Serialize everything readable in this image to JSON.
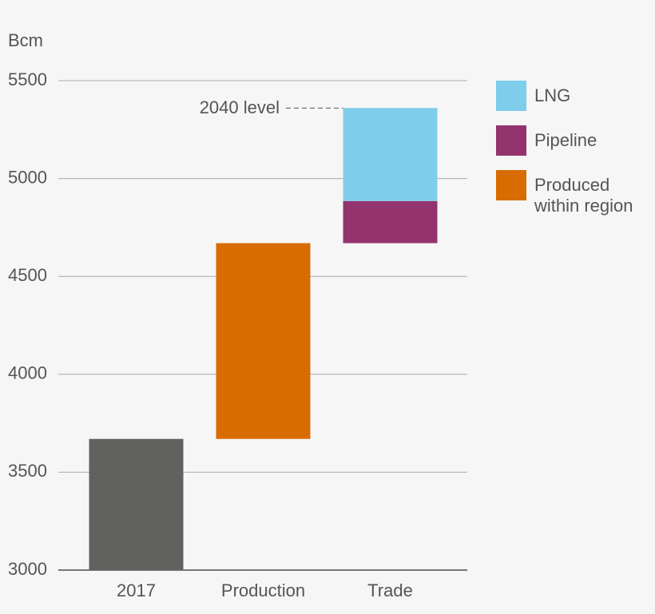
{
  "chart_data": {
    "type": "waterfall",
    "y_label": "Bcm",
    "categories": [
      "2017",
      "Production",
      "Trade"
    ],
    "base": {
      "value": 3670,
      "color": "#61615f"
    },
    "series": [
      {
        "name": "Produced within region",
        "color": "#d86c00",
        "values": [
          null,
          1000,
          null
        ]
      },
      {
        "name": "Pipeline",
        "color": "#93346e",
        "values": [
          null,
          null,
          215
        ]
      },
      {
        "name": "LNG",
        "color": "#7ecdeb",
        "values": [
          null,
          null,
          475
        ]
      }
    ],
    "legend_order": [
      2,
      1,
      0
    ],
    "annotation": "2040 level",
    "ylim": [
      3000,
      5500
    ],
    "yticks": [
      3000,
      3500,
      4000,
      4500,
      5000,
      5500
    ],
    "grid": true
  }
}
